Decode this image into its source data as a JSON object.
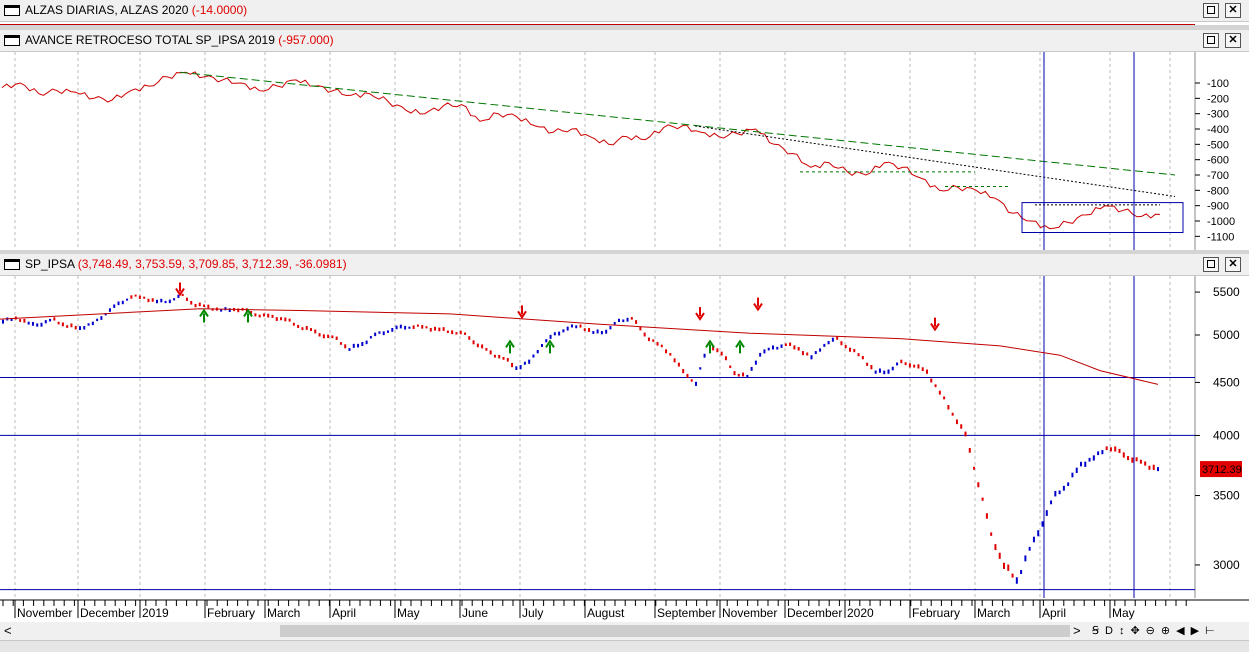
{
  "panes": [
    {
      "id": "alzas",
      "title": "ALZAS DIARIAS, ALZAS 2020",
      "value": "(-14.0000)"
    },
    {
      "id": "avance",
      "title": "AVANCE RETROCESO TOTAL SP_IPSA 2019",
      "value": "(-957.000)"
    },
    {
      "id": "ipsa",
      "title": "SP_IPSA",
      "value": "(3,748.49, 3,753.59, 3,709.85, 3,712.39, -36.0981)"
    }
  ],
  "window_buttons": {
    "maximize": "",
    "close": "✕"
  },
  "last_price_label": "3712.39",
  "toolbar": {
    "scroll_left": "<",
    "scroll_right": ">",
    "items": [
      "Ꞩ",
      "D",
      "↕",
      "✥",
      "⊖",
      "⊕",
      "◀",
      "▶",
      "⊢"
    ]
  },
  "colors": {
    "background": "#ffffff",
    "up_bar": "#0000cc",
    "down_bar": "#e00000",
    "ma_line": "#c00000",
    "guide_line": "#0000aa",
    "trend_green": "#007700",
    "arrow_up": "#008800",
    "arrow_down": "#e00000",
    "oscillator": "#cc0000"
  },
  "chart_data": [
    {
      "type": "line",
      "title": "AVANCE RETROCESO TOTAL SP_IPSA 2019",
      "y_ticks": [
        -100,
        -200,
        -300,
        -400,
        -500,
        -600,
        -700,
        -800,
        -900,
        -1000,
        -1100
      ],
      "ylim": [
        -1150,
        50
      ],
      "grid": "vertical dashed",
      "series": [
        {
          "values": [
            -130,
            -100,
            -170,
            -150,
            -160,
            -200,
            -210,
            -150,
            -120,
            -60,
            -30,
            -60,
            -80,
            -100,
            -150,
            -120,
            -80,
            -120,
            -150,
            -180,
            -170,
            -220,
            -280,
            -300,
            -250,
            -240,
            -350,
            -300,
            -320,
            -380,
            -420,
            -400,
            -450,
            -500,
            -450,
            -470,
            -390,
            -380,
            -420,
            -450,
            -430,
            -400,
            -500,
            -560,
            -650,
            -620,
            -680,
            -700,
            -620,
            -650,
            -720,
            -800,
            -780,
            -800,
            -850,
            -950,
            -1000,
            -1050,
            -1010,
            -960,
            -900,
            -930,
            -970,
            -957
          ]
        }
      ],
      "trend_lines": [
        {
          "name": "",
          "style": "dashed green",
          "from": [
            -30
          ],
          "to": [
            -700
          ]
        },
        {
          "name": "",
          "style": "dotted black",
          "from": [
            -380
          ],
          "to": [
            -840
          ]
        }
      ]
    },
    {
      "type": "bar",
      "title": "SP_IPSA",
      "y_ticks": [
        5500,
        5000,
        4500,
        4000,
        3500,
        3000
      ],
      "ylim": [
        2800,
        5700
      ],
      "x_ticks": [
        "November",
        "December",
        "2019",
        "February",
        "March",
        "April",
        "May",
        "June",
        "July",
        "August",
        "September",
        "November",
        "December",
        "2020",
        "February",
        "March",
        "April",
        "May"
      ],
      "horizontal_levels": [
        4550,
        4000,
        2840
      ],
      "ohlc_close": [
        5150,
        5200,
        5120,
        5130,
        5170,
        5100,
        5080,
        5120,
        5250,
        5350,
        5450,
        5430,
        5380,
        5400,
        5450,
        5350,
        5320,
        5280,
        5300,
        5270,
        5230,
        5200,
        5180,
        5100,
        5050,
        5000,
        4950,
        4850,
        4900,
        5000,
        5050,
        5080,
        5100,
        5080,
        5060,
        5040,
        5000,
        4900,
        4800,
        4750,
        4650,
        4700,
        4900,
        5000,
        5080,
        5100,
        5020,
        5050,
        5150,
        5200,
        5000,
        4900,
        4800,
        4600,
        4500,
        4900,
        4800,
        4600,
        4550,
        4800,
        4850,
        4900,
        4850,
        4750,
        4900,
        4950,
        4850,
        4750,
        4600,
        4620,
        4700,
        4680,
        4600,
        4400,
        4200,
        4000,
        3600,
        3200,
        3000,
        2900,
        3100,
        3300,
        3500,
        3600,
        3750,
        3800,
        3900,
        3850,
        3800,
        3750,
        3712
      ]
    }
  ]
}
